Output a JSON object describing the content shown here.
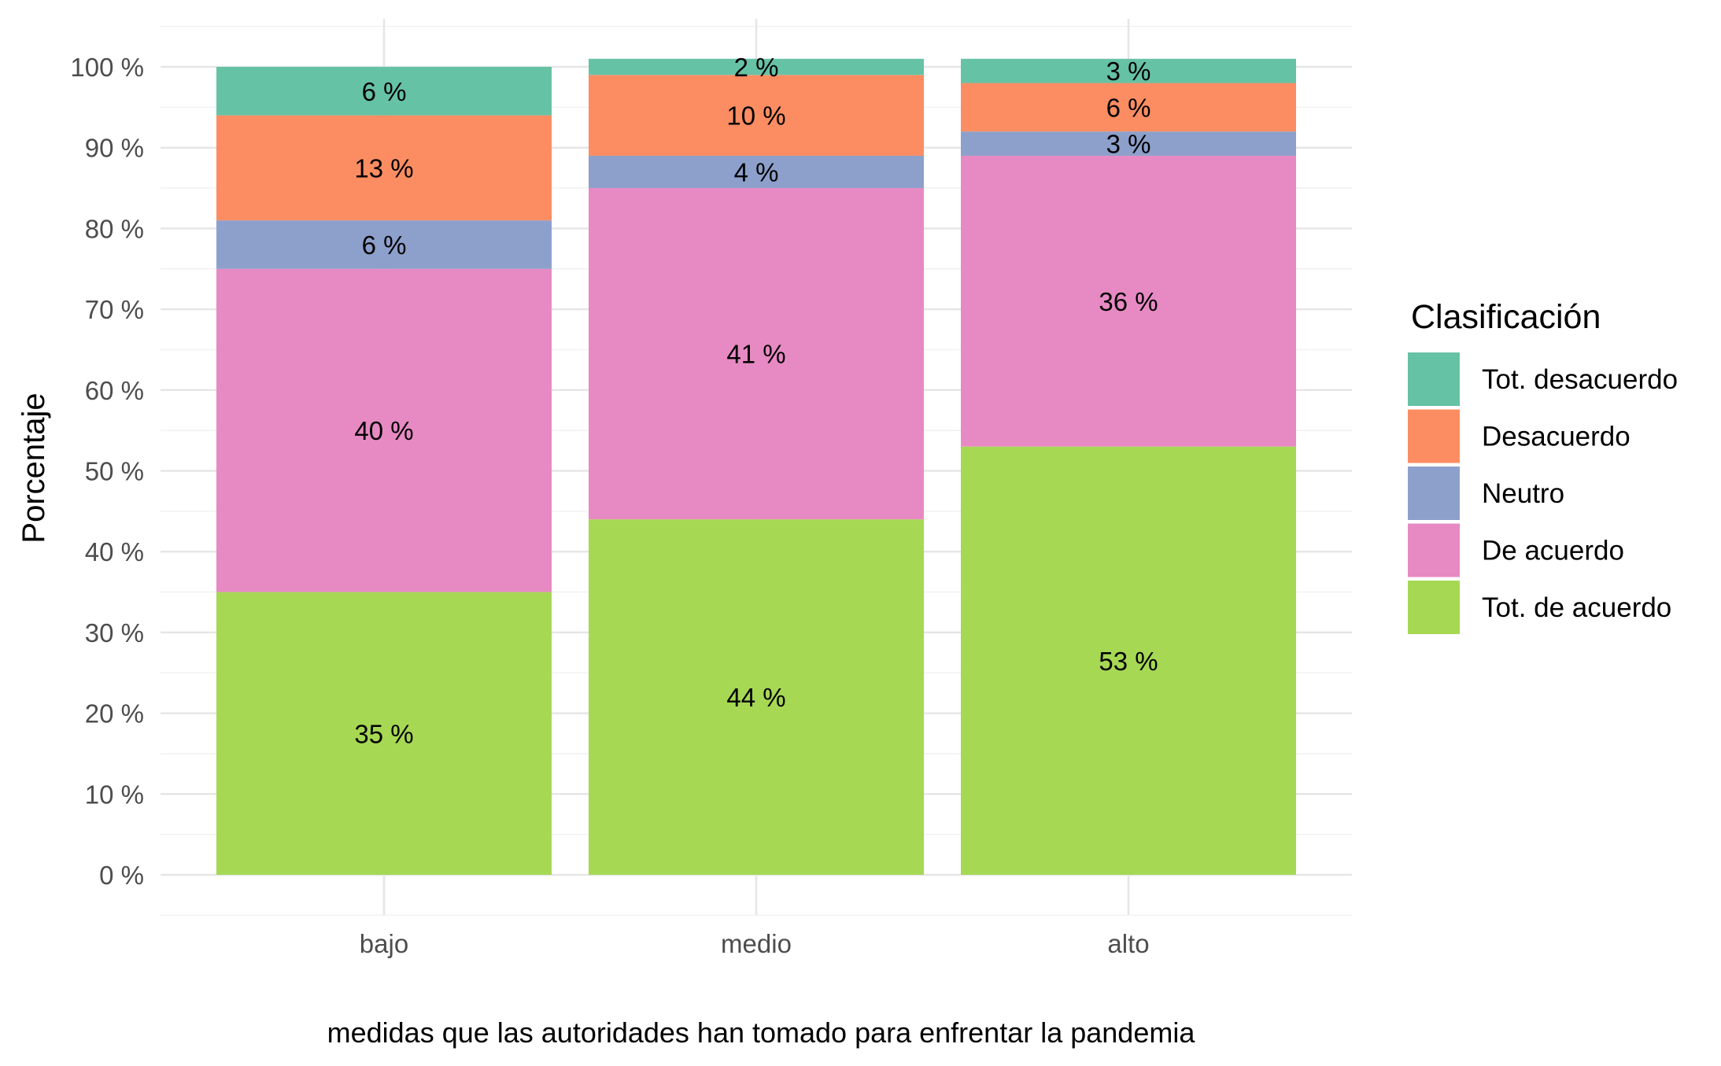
{
  "chart_data": {
    "type": "bar",
    "stacked": true,
    "categories": [
      "bajo",
      "medio",
      "alto"
    ],
    "series": [
      {
        "name": "Tot. de acuerdo",
        "color": "#a6d854",
        "values": [
          35,
          44,
          53
        ],
        "labels": [
          "35 %",
          "44 %",
          "53 %"
        ]
      },
      {
        "name": "De acuerdo",
        "color": "#e78ac3",
        "values": [
          40,
          41,
          36
        ],
        "labels": [
          "40 %",
          "41 %",
          "36 %"
        ]
      },
      {
        "name": "Neutro",
        "color": "#8da0cb",
        "values": [
          6,
          4,
          3
        ],
        "labels": [
          "6 %",
          "4 %",
          "3 %"
        ]
      },
      {
        "name": "Desacuerdo",
        "color": "#fc8d62",
        "values": [
          13,
          10,
          6
        ],
        "labels": [
          "13 %",
          "10 %",
          "6 %"
        ]
      },
      {
        "name": "Tot. desacuerdo",
        "color": "#66c2a5",
        "values": [
          6,
          2,
          3
        ],
        "labels": [
          "6 %",
          "2 %",
          "3 %"
        ]
      }
    ],
    "xlabel": "medidas que las autoridades han tomado para enfrentar la pandemia",
    "ylabel": "Porcentaje",
    "ylim": [
      0,
      100
    ],
    "yticks": [
      0,
      10,
      20,
      30,
      40,
      50,
      60,
      70,
      80,
      90,
      100
    ],
    "ytick_labels": [
      "0 %",
      "10 %",
      "20 %",
      "30 %",
      "40 %",
      "50 %",
      "60 %",
      "70 %",
      "80 %",
      "90 %",
      "100 %"
    ],
    "grid": true,
    "legend": {
      "title": "Clasificación",
      "placement": "right",
      "order": [
        "Tot. desacuerdo",
        "Desacuerdo",
        "Neutro",
        "De acuerdo",
        "Tot. de acuerdo"
      ]
    }
  }
}
